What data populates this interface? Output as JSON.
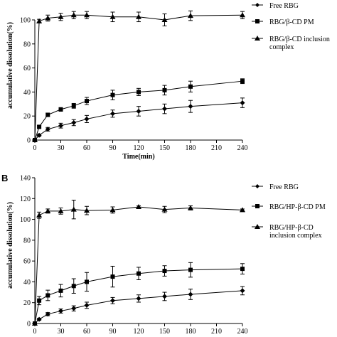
{
  "figure": {
    "panels": [
      {
        "letter": "",
        "xlabel": "Time(min)",
        "ylabel": "accumulative dissolution(%)",
        "legend": [
          {
            "label": "Free RBG",
            "marker": "diamond"
          },
          {
            "label": "RBG/β-CD PM",
            "marker": "square"
          },
          {
            "label": "RBG/β-CD inclusion complex",
            "marker": "triangle"
          }
        ]
      },
      {
        "letter": "B",
        "xlabel": "",
        "ylabel": "accumulative dissolution(%)",
        "legend": [
          {
            "label": "Free RBG",
            "marker": "diamond"
          },
          {
            "label": "RBG/HP-β-CD PM",
            "marker": "square"
          },
          {
            "label": "RBG/HP-β-CD inclusion complex",
            "marker": "triangle"
          }
        ]
      }
    ]
  },
  "chart_data": [
    {
      "type": "line",
      "title": "",
      "xlabel": "Time(min)",
      "ylabel": "accumulative dissolution(%)",
      "xlim": [
        0,
        240
      ],
      "ylim": [
        0,
        100
      ],
      "xticks": [
        0,
        30,
        60,
        90,
        120,
        150,
        180,
        210,
        240
      ],
      "yticks": [
        0,
        20,
        40,
        60,
        80,
        100
      ],
      "grid": false,
      "legend_position": "right",
      "series": [
        {
          "name": "Free RBG",
          "marker": "diamond",
          "x": [
            0,
            5,
            15,
            30,
            45,
            60,
            90,
            120,
            150,
            180,
            240
          ],
          "y": [
            0,
            4,
            9,
            12,
            14.5,
            17.5,
            22,
            24,
            26,
            28,
            31
          ],
          "err": [
            0,
            1,
            1.5,
            2,
            2.5,
            3,
            3,
            4,
            4,
            5,
            4
          ]
        },
        {
          "name": "RBG/β-CD PM",
          "marker": "square",
          "x": [
            0,
            5,
            15,
            30,
            45,
            60,
            90,
            120,
            150,
            180,
            240
          ],
          "y": [
            0,
            11,
            21,
            25.5,
            28.5,
            32.5,
            37.5,
            40,
            41.5,
            44.5,
            49
          ],
          "err": [
            0,
            1,
            1.5,
            1.5,
            2,
            3,
            4,
            3,
            4,
            4.5,
            2
          ]
        },
        {
          "name": "RBG/β-CD inclusion complex",
          "marker": "triangle",
          "x": [
            0,
            5,
            15,
            30,
            45,
            60,
            90,
            120,
            150,
            180,
            240
          ],
          "y": [
            0,
            99,
            101.5,
            102.5,
            104,
            104,
            102.5,
            102.5,
            100,
            103.5,
            104
          ],
          "err": [
            0,
            1.5,
            2.5,
            3,
            3,
            3,
            4,
            4,
            5,
            4,
            3
          ]
        }
      ]
    },
    {
      "type": "line",
      "title": "",
      "xlabel": "",
      "ylabel": "accumulative dissolution(%)",
      "xlim": [
        0,
        240
      ],
      "ylim": [
        0,
        140
      ],
      "xticks": [
        0,
        30,
        60,
        90,
        120,
        150,
        180,
        210,
        240
      ],
      "yticks": [
        0,
        20,
        40,
        60,
        80,
        100,
        120,
        140
      ],
      "grid": false,
      "legend_position": "right",
      "series": [
        {
          "name": "Free RBG",
          "marker": "diamond",
          "x": [
            0,
            5,
            15,
            30,
            45,
            60,
            90,
            120,
            150,
            180,
            240
          ],
          "y": [
            0,
            4,
            9,
            12,
            14.5,
            17.5,
            22,
            24,
            26,
            28,
            31.5
          ],
          "err": [
            0,
            1,
            1.5,
            2,
            2.5,
            3,
            3,
            3.5,
            4,
            5,
            4
          ]
        },
        {
          "name": "RBG/HP-β-CD PM",
          "marker": "square",
          "x": [
            0,
            5,
            15,
            30,
            45,
            60,
            90,
            120,
            150,
            180,
            240
          ],
          "y": [
            0,
            22,
            27,
            31.5,
            36,
            40,
            45,
            48,
            50.5,
            51.5,
            52.5
          ],
          "err": [
            0,
            4,
            5,
            6,
            7,
            9,
            10,
            6,
            5,
            7,
            5
          ]
        },
        {
          "name": "RBG/HP-β-CD inclusion complex",
          "marker": "triangle",
          "x": [
            0,
            5,
            15,
            30,
            45,
            60,
            90,
            120,
            150,
            180,
            240
          ],
          "y": [
            0,
            104,
            108,
            108,
            109.5,
            108.5,
            109,
            112,
            109.5,
            111,
            109
          ],
          "err": [
            0,
            3,
            2,
            3,
            9,
            4,
            3,
            1,
            3,
            2,
            1
          ]
        }
      ]
    }
  ]
}
